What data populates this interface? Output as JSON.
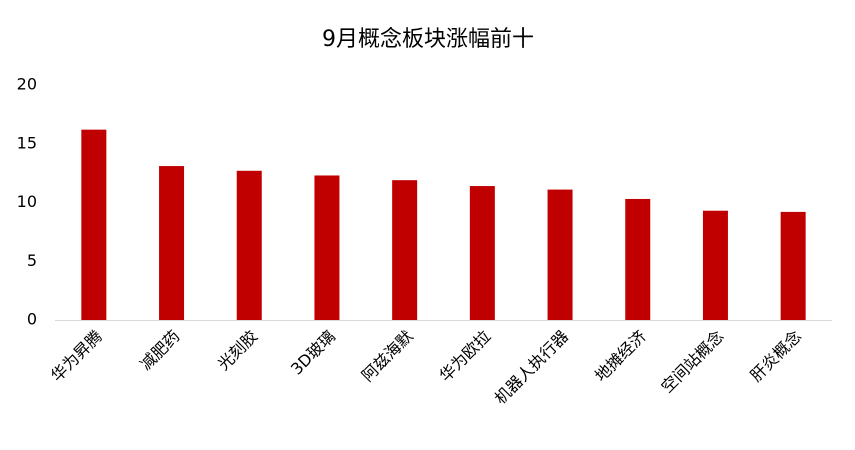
{
  "chart_data": {
    "type": "bar",
    "title": "9月概念板块涨幅前十",
    "categories": [
      "华为昇腾",
      "减肥药",
      "光刻胶",
      "3D玻璃",
      "阿兹海默",
      "华为欧拉",
      "机器人执行器",
      "地摊经济",
      "空间站概念",
      "肝炎概念"
    ],
    "values": [
      16.2,
      13.1,
      12.7,
      12.3,
      11.9,
      11.4,
      11.1,
      10.3,
      9.3,
      9.2
    ],
    "color": "#c00000",
    "ylim": [
      0,
      20
    ],
    "yticks": [
      0,
      5,
      10,
      15,
      20
    ],
    "grid": false
  }
}
